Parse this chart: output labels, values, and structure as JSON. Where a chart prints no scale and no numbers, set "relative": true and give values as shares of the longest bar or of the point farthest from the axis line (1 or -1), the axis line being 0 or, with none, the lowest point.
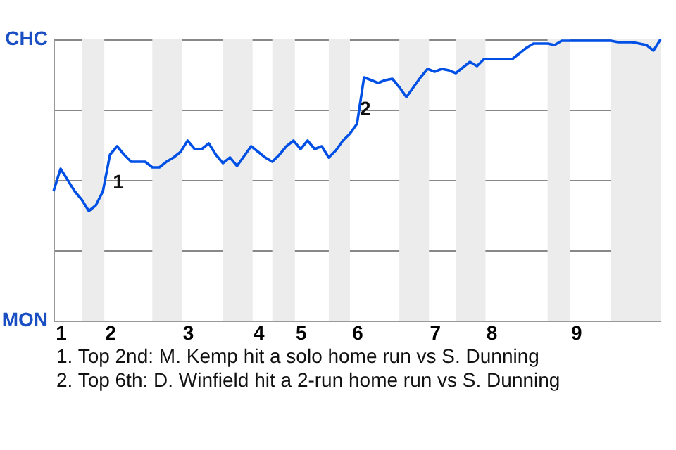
{
  "chart_data": {
    "type": "line",
    "categories": [
      null,
      "1",
      null,
      null,
      null,
      null,
      null,
      null,
      "2",
      null,
      null,
      null,
      null,
      null,
      null,
      null,
      null,
      null,
      null,
      "3",
      null,
      null,
      null,
      null,
      null,
      null,
      null,
      null,
      null,
      "4",
      null,
      null,
      null,
      null,
      null,
      "5",
      null,
      null,
      null,
      null,
      null,
      null,
      null,
      "6",
      null,
      null,
      null,
      null,
      null,
      null,
      null,
      null,
      null,
      null,
      "7",
      null,
      null,
      null,
      null,
      null,
      null,
      null,
      "8",
      null,
      null,
      null,
      null,
      null,
      null,
      null,
      null,
      null,
      null,
      null,
      "9",
      null,
      null,
      null,
      null,
      null,
      null,
      null,
      null,
      null,
      null,
      null,
      null
    ],
    "series": [
      {
        "color": "#0050e6",
        "values": [
          0.46,
          0.54,
          0.5,
          0.46,
          0.43,
          0.39,
          0.41,
          0.46,
          0.59,
          0.62,
          0.59,
          0.565,
          0.565,
          0.565,
          0.545,
          0.545,
          0.565,
          0.58,
          0.6,
          0.64,
          0.61,
          0.61,
          0.63,
          0.59,
          0.56,
          0.58,
          0.55,
          0.585,
          0.62,
          0.6,
          0.58,
          0.565,
          0.59,
          0.62,
          0.64,
          0.61,
          0.64,
          0.61,
          0.62,
          0.58,
          0.605,
          0.64,
          0.665,
          0.7,
          0.865,
          0.855,
          0.845,
          0.855,
          0.86,
          0.83,
          0.795,
          0.83,
          0.865,
          0.895,
          0.885,
          0.895,
          0.89,
          0.88,
          0.9,
          0.92,
          0.905,
          0.93,
          0.93,
          0.93,
          0.93,
          0.93,
          0.95,
          0.97,
          0.985,
          0.985,
          0.985,
          0.98,
          0.995,
          0.995,
          0.995,
          0.995,
          0.995,
          0.995,
          0.995,
          0.995,
          0.99,
          0.99,
          0.99,
          0.985,
          0.98,
          0.96,
          1.0
        ]
      }
    ],
    "relative": true,
    "grid": "y",
    "annotations": [
      "CHC",
      "MON",
      {
        "text": "1",
        "x": "2",
        "y": 0.49
      },
      {
        "text": "2",
        "x": "6",
        "y": 0.75
      },
      "1. Top 2nd: M. Kemp hit a solo home run vs S. Dunning",
      "2. Top 6th: D. Winfield hit a 2-run home run vs S. Dunning"
    ]
  }
}
